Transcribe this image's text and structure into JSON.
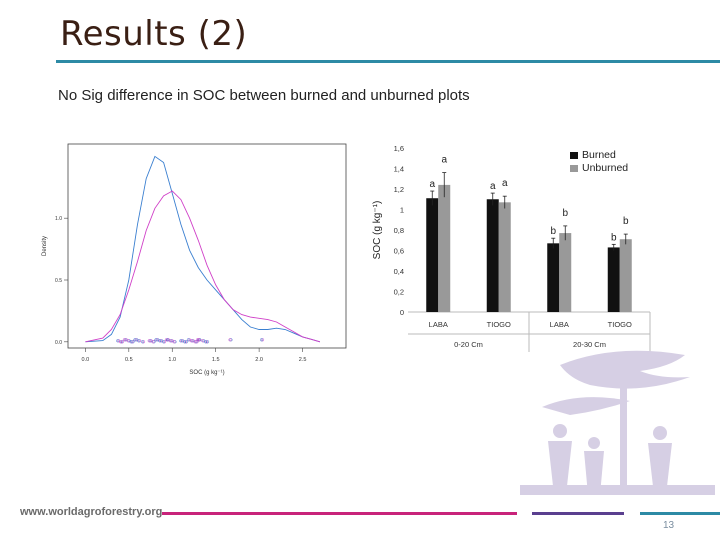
{
  "slide": {
    "title": "Results (2)",
    "subtitle": "No Sig difference in SOC between burned and unburned plots",
    "footer_url": "www.worldagroforestry.org",
    "page_number": "13"
  },
  "colors": {
    "title_rule": "#2d8aa5",
    "burned": "#111111",
    "unburned": "#999999",
    "density_blue": "#3a7fd0",
    "density_magenta": "#d040c8",
    "footer_magenta": "#c8237a",
    "footer_purple": "#5a3f8f",
    "footer_blue": "#2d8aa5",
    "logo": "#d6cfe4"
  },
  "chart_data": [
    {
      "type": "line",
      "ylabel": "Density",
      "xlabel": "SOC (g kg⁻¹)",
      "x_ticks": [
        "0.0",
        "0.5",
        "1.0",
        "1.5",
        "2.0",
        "2.5"
      ],
      "y_ticks": [
        "0.0",
        "0.5",
        "1.0"
      ],
      "xlim": [
        -0.2,
        3.0
      ],
      "ylim": [
        -0.05,
        1.6
      ],
      "series": [
        {
          "color": "#3a7fd0",
          "x": [
            0.0,
            0.2,
            0.3,
            0.4,
            0.5,
            0.6,
            0.7,
            0.8,
            0.9,
            1.0,
            1.1,
            1.2,
            1.3,
            1.4,
            1.5,
            1.6,
            1.7,
            1.8,
            1.9,
            2.0,
            2.1,
            2.2,
            2.3,
            2.4,
            2.5,
            2.6,
            2.7
          ],
          "y": [
            0.0,
            0.01,
            0.06,
            0.2,
            0.5,
            0.95,
            1.32,
            1.5,
            1.45,
            1.2,
            0.95,
            0.74,
            0.6,
            0.5,
            0.42,
            0.34,
            0.26,
            0.18,
            0.12,
            0.1,
            0.1,
            0.11,
            0.1,
            0.07,
            0.04,
            0.02,
            0.0
          ]
        },
        {
          "color": "#d040c8",
          "x": [
            0.0,
            0.2,
            0.3,
            0.4,
            0.5,
            0.6,
            0.7,
            0.8,
            0.9,
            1.0,
            1.1,
            1.2,
            1.3,
            1.4,
            1.5,
            1.6,
            1.7,
            1.8,
            1.9,
            2.0,
            2.1,
            2.2,
            2.3,
            2.4,
            2.5,
            2.6,
            2.7
          ],
          "y": [
            0.0,
            0.03,
            0.1,
            0.22,
            0.42,
            0.65,
            0.9,
            1.08,
            1.18,
            1.22,
            1.15,
            1.0,
            0.82,
            0.62,
            0.46,
            0.34,
            0.26,
            0.22,
            0.2,
            0.19,
            0.18,
            0.16,
            0.12,
            0.08,
            0.04,
            0.02,
            0.0
          ]
        }
      ]
    },
    {
      "type": "bar",
      "ylabel": "SOC (g kg⁻¹)",
      "ylim": [
        0,
        1.6
      ],
      "y_ticks": [
        "0",
        "0,2",
        "0,4",
        "0,6",
        "0,8",
        "1",
        "1,2",
        "1,4",
        "1,6"
      ],
      "categories": [
        "LABA",
        "TIOGO",
        "LABA",
        "TIOGO"
      ],
      "groups": [
        "0-20 Cm",
        "20-30 Cm"
      ],
      "legend_position": "top-right",
      "series": [
        {
          "name": "Burned",
          "color": "#111111",
          "values": [
            1.11,
            1.1,
            0.67,
            0.63
          ],
          "errors": [
            0.07,
            0.06,
            0.05,
            0.03
          ],
          "letters": [
            "a",
            "a",
            "b",
            "b"
          ]
        },
        {
          "name": "Unburned",
          "color": "#999999",
          "values": [
            1.24,
            1.07,
            0.77,
            0.71
          ],
          "errors": [
            0.12,
            0.06,
            0.07,
            0.05
          ],
          "letters": [
            "a",
            "a",
            "b",
            "b"
          ]
        }
      ]
    }
  ]
}
